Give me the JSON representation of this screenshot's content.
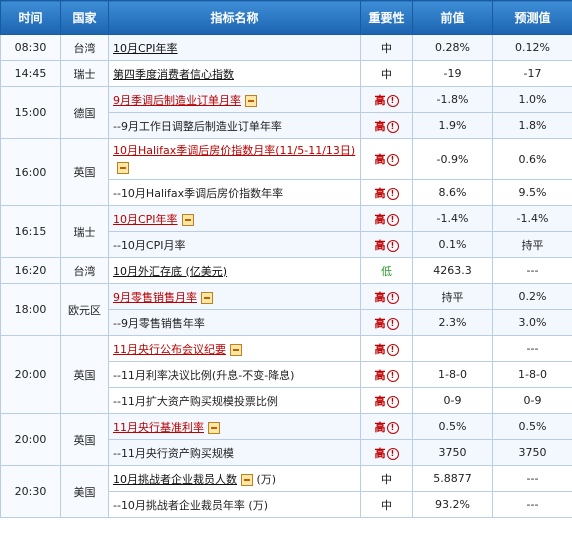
{
  "headers": {
    "time": "时间",
    "country": "国家",
    "indicator": "指标名称",
    "importance": "重要性",
    "previous": "前值",
    "forecast": "预测值"
  },
  "importance_alert_glyph": "!",
  "rows": [
    {
      "time": "08:30",
      "country": "台湾",
      "indicator": "10月CPI年率",
      "importance": "中",
      "previous": "0.28%",
      "forecast": "0.12%"
    },
    {
      "time": "14:45",
      "country": "瑞士",
      "indicator": "第四季度消费者信心指数",
      "importance": "中",
      "previous": "-19",
      "forecast": "-17"
    },
    {
      "time": "15:00",
      "country": "德国",
      "indicator": "9月季调后制造业订单月率",
      "importance": "高",
      "previous": "-1.8%",
      "forecast": "1.0%"
    },
    {
      "indicator": "--9月工作日调整后制造业订单年率",
      "importance": "高",
      "previous": "1.9%",
      "forecast": "1.8%"
    },
    {
      "time": "16:00",
      "country": "英国",
      "indicator": "10月Halifax季调后房价指数月率(11/5-11/13日)",
      "importance": "高",
      "previous": "-0.9%",
      "forecast": "0.6%"
    },
    {
      "indicator": "--10月Halifax季调后房价指数年率",
      "importance": "高",
      "previous": "8.6%",
      "forecast": "9.5%"
    },
    {
      "time": "16:15",
      "country": "瑞士",
      "indicator": "10月CPI年率",
      "importance": "高",
      "previous": "-1.4%",
      "forecast": "-1.4%"
    },
    {
      "indicator": "--10月CPI月率",
      "importance": "高",
      "previous": "0.1%",
      "forecast": "持平"
    },
    {
      "time": "16:20",
      "country": "台湾",
      "indicator": "10月外汇存底 (亿美元)",
      "importance": "低",
      "previous": "4263.3",
      "forecast": "---"
    },
    {
      "time": "18:00",
      "country": "欧元区",
      "indicator": "9月零售销售月率",
      "importance": "高",
      "previous": "持平",
      "forecast": "0.2%"
    },
    {
      "indicator": "--9月零售销售年率",
      "importance": "高",
      "previous": "2.3%",
      "forecast": "3.0%"
    },
    {
      "time": "20:00",
      "country": "英国",
      "indicator": "11月央行公布会议纪要",
      "importance": "高",
      "previous": "",
      "forecast": "---"
    },
    {
      "indicator": "--11月利率决议比例(升息-不变-降息)",
      "importance": "高",
      "previous": "1-8-0",
      "forecast": "1-8-0"
    },
    {
      "indicator": "--11月扩大资产购买规模投票比例",
      "importance": "高",
      "previous": "0-9",
      "forecast": "0-9"
    },
    {
      "time": "20:00",
      "country": "英国",
      "indicator": "11月央行基准利率",
      "importance": "高",
      "previous": "0.5%",
      "forecast": "0.5%"
    },
    {
      "indicator": "--11月央行资产购买规模",
      "importance": "高",
      "previous": "3750",
      "forecast": "3750"
    },
    {
      "time": "20:30",
      "country": "美国",
      "indicator": "10月挑战者企业裁员人数",
      "indicator_suffix": "(万)",
      "importance": "中",
      "previous": "5.8877",
      "forecast": "---"
    },
    {
      "indicator": "--10月挑战者企业裁员年率 (万)",
      "importance": "中",
      "previous": "93.2%",
      "forecast": "---"
    }
  ]
}
